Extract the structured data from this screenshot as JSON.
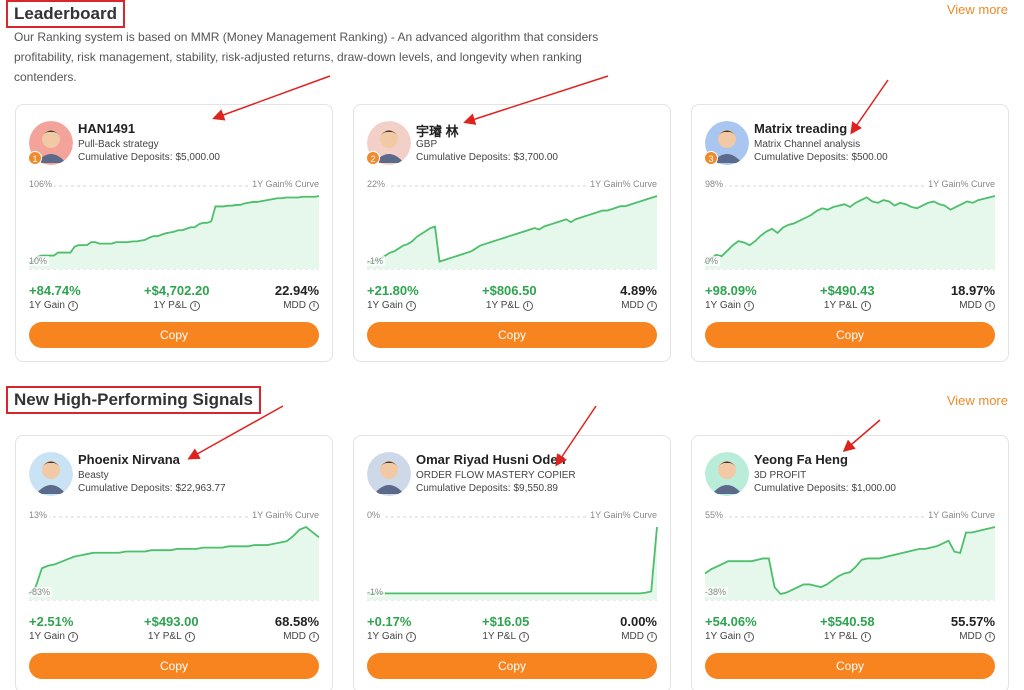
{
  "leaderboard": {
    "title": "Leaderboard",
    "view_more": "View more",
    "description": "Our Ranking system is based on MMR (Money Management Ranking) - An advanced algorithm that considers profitability, risk management, stability, risk-adjusted returns, draw-down levels, and longevity when ranking contenders."
  },
  "signals": {
    "title": "New High-Performing Signals",
    "view_more": "View more"
  },
  "labels": {
    "cumulative_deposits": "Cumulative Deposits:",
    "curve": "1Y Gain% Curve",
    "gain": "1Y Gain",
    "pnl": "1Y P&L",
    "mdd": "MDD",
    "copy": "Copy",
    "info_glyph": "i"
  },
  "cards": [
    {
      "rank": "1",
      "name": "HAN1491",
      "strategy": "Pull-Back strategy",
      "deposits": "$5,000.00",
      "chart_max": "106%",
      "chart_min": "10%",
      "gain": "+84.74%",
      "pnl": "+$4,702.20",
      "mdd": "22.94%",
      "avatar_color": "#f4a39a",
      "curve": [
        12,
        14,
        20,
        22,
        22,
        22,
        22,
        26,
        26,
        26,
        26,
        34,
        36,
        36,
        36,
        40,
        40,
        38,
        38,
        38,
        38,
        40,
        40,
        40,
        40,
        41,
        41,
        42,
        43,
        46,
        48,
        48,
        50,
        52,
        53,
        54,
        56,
        56,
        58,
        60,
        60,
        64,
        66,
        66,
        68,
        88,
        88,
        88,
        89,
        89,
        90,
        90,
        92,
        93,
        94,
        94,
        95,
        96,
        97,
        98,
        99,
        99,
        100,
        100,
        100,
        100,
        101,
        101,
        101,
        101,
        102
      ]
    },
    {
      "rank": "2",
      "name": "宇璿 林",
      "strategy": "GBP",
      "deposits": "$3,700.00",
      "chart_max": "22%",
      "chart_min": "-1%",
      "gain": "+21.80%",
      "pnl": "+$806.50",
      "mdd": "4.89%",
      "avatar_color": "#f2d0c8",
      "curve": [
        10,
        12,
        14,
        16,
        20,
        24,
        26,
        30,
        34,
        36,
        40,
        46,
        50,
        54,
        58,
        60,
        12,
        14,
        16,
        18,
        20,
        22,
        24,
        26,
        30,
        34,
        36,
        38,
        40,
        42,
        44,
        46,
        48,
        50,
        52,
        54,
        56,
        58,
        56,
        60,
        62,
        64,
        66,
        68,
        70,
        66,
        70,
        72,
        74,
        76,
        78,
        80,
        82,
        82,
        84,
        86,
        88,
        88,
        90,
        92,
        94,
        96,
        98,
        100,
        102
      ]
    },
    {
      "rank": "3",
      "name": "Matrix treading",
      "strategy": "Matrix Channel analysis",
      "deposits": "$500.00",
      "chart_max": "98%",
      "chart_min": "0%",
      "gain": "+98.09%",
      "pnl": "+$490.43",
      "mdd": "18.97%",
      "avatar_color": "#a9c6f0",
      "curve": [
        4,
        10,
        16,
        14,
        22,
        30,
        36,
        34,
        30,
        36,
        44,
        50,
        54,
        48,
        56,
        60,
        62,
        66,
        70,
        74,
        80,
        84,
        82,
        86,
        88,
        90,
        86,
        92,
        96,
        100,
        94,
        92,
        96,
        94,
        88,
        92,
        90,
        86,
        84,
        88,
        92,
        94,
        90,
        88,
        82,
        86,
        90,
        94,
        92,
        96,
        98,
        100,
        102
      ]
    },
    {
      "rank": "",
      "name": "Phoenix Nirvana",
      "strategy": "Beasty",
      "deposits": "$22,963.77",
      "chart_max": "13%",
      "chart_min": "-83%",
      "gain": "+2.51%",
      "pnl": "+$493.00",
      "mdd": "68.58%",
      "avatar_color": "#c9e3f5",
      "curve": [
        0,
        10,
        40,
        44,
        46,
        50,
        54,
        58,
        60,
        62,
        64,
        64,
        64,
        64,
        64,
        66,
        66,
        66,
        66,
        68,
        68,
        68,
        68,
        70,
        70,
        70,
        70,
        72,
        72,
        72,
        72,
        74,
        74,
        74,
        74,
        76,
        76,
        76,
        78,
        80,
        82,
        90,
        100,
        104,
        96,
        88
      ]
    },
    {
      "rank": "",
      "name": "Omar Riyad Husni Odeh",
      "strategy": "ORDER FLOW MASTERY COPIER",
      "deposits": "$9,550.89",
      "chart_max": "0%",
      "chart_min": "-1%",
      "gain": "+0.17%",
      "pnl": "+$16.05",
      "mdd": "0.00%",
      "avatar_color": "#cdd9e8",
      "curve": [
        0,
        1,
        1,
        1,
        1,
        1,
        1,
        1,
        1,
        1,
        1,
        1,
        1,
        1,
        1,
        1,
        1,
        1,
        1,
        1,
        1,
        1,
        1,
        1,
        1,
        1,
        1,
        1,
        1,
        1,
        1,
        1,
        1,
        1,
        1,
        1,
        1,
        1,
        1,
        1,
        1,
        1,
        1,
        1,
        1,
        1,
        1,
        1,
        2,
        4,
        104
      ]
    },
    {
      "rank": "",
      "name": "Yeong Fa Heng",
      "strategy": "3D PROFIT",
      "deposits": "$1,000.00",
      "chart_max": "55%",
      "chart_min": "-38%",
      "gain": "+54.06%",
      "pnl": "+$540.58",
      "mdd": "55.57%",
      "avatar_color": "#b9ecd9",
      "curve": [
        30,
        36,
        40,
        44,
        48,
        48,
        48,
        48,
        48,
        50,
        52,
        52,
        10,
        0,
        2,
        6,
        10,
        14,
        14,
        12,
        10,
        14,
        20,
        26,
        30,
        32,
        40,
        50,
        52,
        52,
        52,
        54,
        56,
        58,
        60,
        62,
        64,
        66,
        66,
        68,
        70,
        74,
        78,
        62,
        60,
        90,
        90,
        92,
        94,
        96,
        98
      ]
    }
  ],
  "chart_colors": {
    "line": "#4cbf6a",
    "fill": "#e6f7ec",
    "grid": "#d6d6d6",
    "accent": "#f7841f",
    "highlight_box": "#d9262c",
    "annotation_arrow": "#e0221f"
  },
  "icons": {
    "info": "info-circle-icon",
    "avatar": "avatar-icon",
    "rank": "rank-badge"
  }
}
